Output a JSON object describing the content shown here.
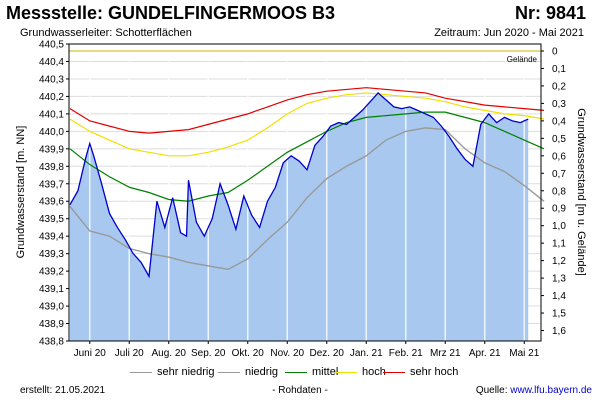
{
  "header": {
    "title": "Messstelle: GUNDELFINGERMOOS B3",
    "number": "Nr: 9841",
    "aquifer": "Grundwasserleiter:   Schotterflächen",
    "period": "Zeitraum: Jun 2020 - Mai 2021"
  },
  "chart_data": {
    "type": "line",
    "ylabel": "Grundwasserstand [m. NN]",
    "ylabel_right": "Grundwasserstand [m u. Gelände]",
    "ylim": [
      438.8,
      440.5
    ],
    "yticks": [
      "440,5",
      "440,4",
      "440,3",
      "440,2",
      "440,1",
      "440,0",
      "439,9",
      "439,8",
      "439,7",
      "439,6",
      "439,5",
      "439,4",
      "439,3",
      "439,2",
      "439,1",
      "439,0",
      "438,9",
      "438,8"
    ],
    "yticks_right": [
      "0",
      "0,1",
      "0,2",
      "0,3",
      "0,4",
      "0,5",
      "0,6",
      "0,7",
      "0,8",
      "0,9",
      "1,0",
      "1,1",
      "1,2",
      "1,3",
      "1,4",
      "1,5",
      "1,6"
    ],
    "x_ticks": [
      "Juni 20",
      "Juli 20",
      "Aug. 20",
      "Sep. 20",
      "Okt. 20",
      "Nov. 20",
      "Dez. 20",
      "Jan. 21",
      "Feb. 21",
      "Mrz 21",
      "Apr. 21",
      "Mai 21"
    ],
    "ground_label": "Gelände",
    "ground_level": 440.46,
    "grid": true,
    "x": [
      0,
      0.5,
      1,
      1.5,
      2,
      2.5,
      3,
      3.5,
      4,
      4.5,
      5,
      5.5,
      6,
      6.5,
      7,
      7.5,
      8,
      8.5,
      9,
      9.5,
      10,
      10.5,
      11,
      11.5,
      12
    ],
    "series": [
      {
        "name": "sehr niedrig",
        "color": "#999999",
        "values": [
          439.57,
          439.43,
          439.4,
          439.33,
          439.3,
          439.28,
          439.25,
          439.23,
          439.21,
          439.27,
          439.38,
          439.48,
          439.62,
          439.73,
          439.8,
          439.86,
          439.95,
          440.0,
          440.02,
          440.01,
          439.9,
          439.82,
          439.77,
          439.69,
          439.6
        ]
      },
      {
        "name": "niedrig",
        "color": "#999999",
        "values": [
          439.57,
          439.43,
          439.4,
          439.33,
          439.3,
          439.28,
          439.25,
          439.23,
          439.21,
          439.27,
          439.38,
          439.48,
          439.62,
          439.73,
          439.8,
          439.86,
          439.95,
          440.0,
          440.02,
          440.01,
          439.9,
          439.82,
          439.77,
          439.69,
          439.6
        ]
      },
      {
        "name": "mittel",
        "color": "#008000",
        "values": [
          439.9,
          439.81,
          439.74,
          439.68,
          439.65,
          439.61,
          439.6,
          439.63,
          439.65,
          439.72,
          439.8,
          439.88,
          439.94,
          440.0,
          440.05,
          440.08,
          440.09,
          440.1,
          440.11,
          440.11,
          440.08,
          440.05,
          440.0,
          439.95,
          439.9
        ]
      },
      {
        "name": "hoch",
        "color": "#f0e000",
        "values": [
          440.07,
          440.0,
          439.95,
          439.9,
          439.88,
          439.86,
          439.86,
          439.88,
          439.91,
          439.95,
          440.02,
          440.1,
          440.16,
          440.19,
          440.21,
          440.22,
          440.21,
          440.2,
          440.19,
          440.17,
          440.14,
          440.12,
          440.1,
          440.09,
          440.07
        ]
      },
      {
        "name": "sehr hoch",
        "color": "#e00000",
        "values": [
          440.13,
          440.06,
          440.03,
          440.0,
          439.99,
          440.0,
          440.01,
          440.04,
          440.07,
          440.1,
          440.14,
          440.18,
          440.21,
          440.23,
          440.24,
          440.25,
          440.24,
          440.23,
          440.22,
          440.19,
          440.17,
          440.15,
          440.14,
          440.13,
          440.12
        ]
      }
    ],
    "measured": {
      "color": "#0000cc",
      "fill": "#a8c8f0",
      "x": [
        0,
        0.2,
        0.4,
        0.5,
        0.6,
        0.8,
        1.0,
        1.2,
        1.4,
        1.6,
        1.8,
        2.0,
        2.2,
        2.4,
        2.6,
        2.8,
        2.95,
        3.0,
        3.2,
        3.4,
        3.6,
        3.8,
        4.0,
        4.2,
        4.4,
        4.6,
        4.8,
        5.0,
        5.2,
        5.4,
        5.6,
        5.8,
        6.0,
        6.2,
        6.4,
        6.6,
        6.8,
        7.0,
        7.2,
        7.4,
        7.6,
        7.8,
        8.0,
        8.2,
        8.4,
        8.6,
        8.8,
        9.0,
        9.2,
        9.4,
        9.6,
        9.8,
        10.0,
        10.2,
        10.4,
        10.6,
        10.8,
        11.0,
        11.2,
        11.4,
        11.6
      ],
      "y": [
        439.58,
        439.66,
        439.85,
        439.93,
        439.86,
        439.7,
        439.53,
        439.45,
        439.38,
        439.3,
        439.25,
        439.17,
        439.6,
        439.45,
        439.62,
        439.42,
        439.4,
        439.72,
        439.48,
        439.4,
        439.5,
        439.7,
        439.58,
        439.44,
        439.63,
        439.52,
        439.45,
        439.6,
        439.68,
        439.82,
        439.86,
        439.83,
        439.78,
        439.92,
        439.97,
        440.03,
        440.05,
        440.04,
        440.08,
        440.12,
        440.17,
        440.22,
        440.18,
        440.14,
        440.13,
        440.14,
        440.12,
        440.1,
        440.08,
        440.03,
        439.97,
        439.9,
        439.84,
        439.8,
        440.04,
        440.1,
        440.05,
        440.08,
        440.06,
        440.05,
        440.07
      ]
    }
  },
  "legend": [
    "sehr niedrig",
    "niedrig",
    "mittel",
    "hoch",
    "sehr hoch"
  ],
  "footer": {
    "created": "erstellt:  21.05.2021",
    "raw": "- Rohdaten -",
    "source_label": "Quelle: ",
    "source_link": "www.lfu.bayern.de"
  }
}
